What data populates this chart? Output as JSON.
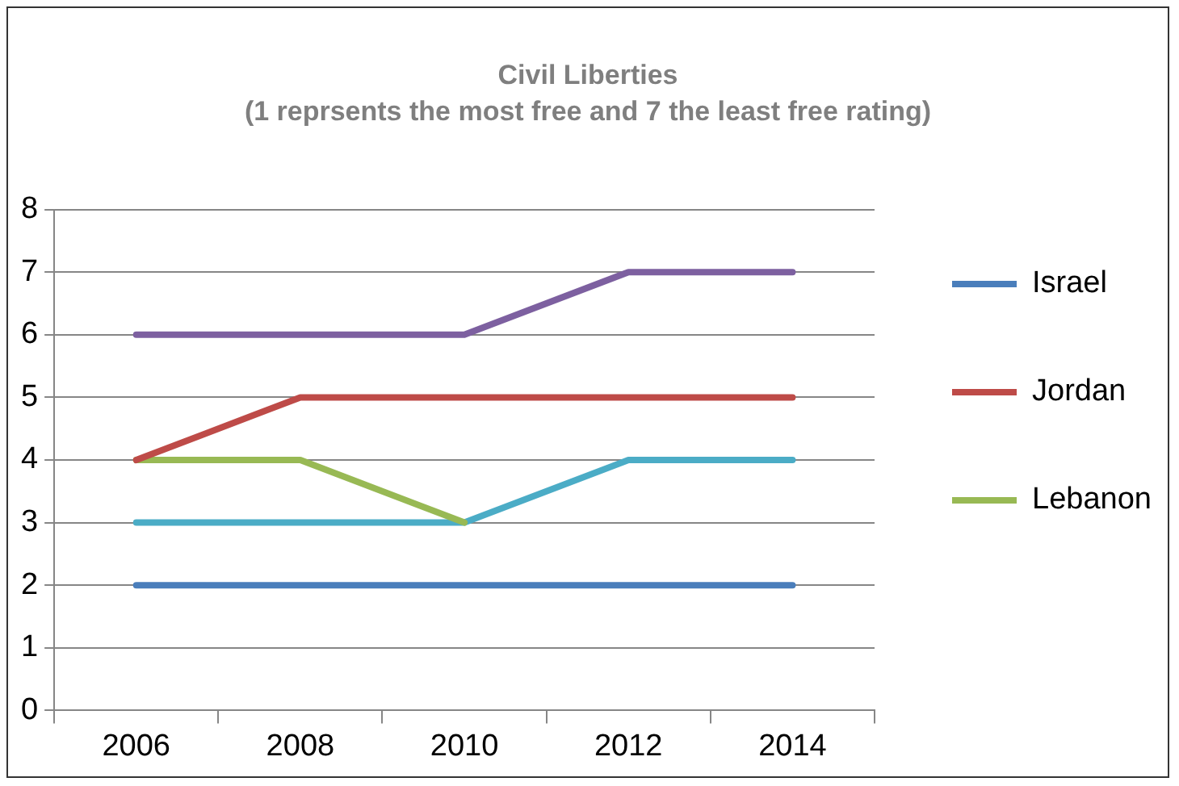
{
  "chart_data": {
    "type": "line",
    "title": "Civil Liberties",
    "subtitle": "(1 reprsents the most free and 7 the least free rating)",
    "categories": [
      "2006",
      "2008",
      "2010",
      "2012",
      "2014"
    ],
    "series": [
      {
        "name": "Israel",
        "color": "#4a7ebb",
        "values": [
          2,
          2,
          2,
          2,
          2
        ]
      },
      {
        "name": "Jordan",
        "color": "#be4b48",
        "values": [
          4,
          5,
          5,
          5,
          5
        ]
      },
      {
        "name": "Lebanon",
        "color": "#98b954",
        "values": [
          4,
          4,
          3,
          null,
          null
        ]
      },
      {
        "color": "#4bacc6",
        "values": [
          3,
          3,
          3,
          4,
          4
        ]
      },
      {
        "color": "#7d60a0",
        "values": [
          6,
          6,
          6,
          7,
          7
        ]
      }
    ],
    "ylim": [
      0,
      8
    ],
    "yticks": [
      0,
      1,
      2,
      3,
      4,
      5,
      6,
      7,
      8
    ],
    "grid": "y",
    "legend": "right",
    "marker": "none",
    "line_style": "solid"
  }
}
